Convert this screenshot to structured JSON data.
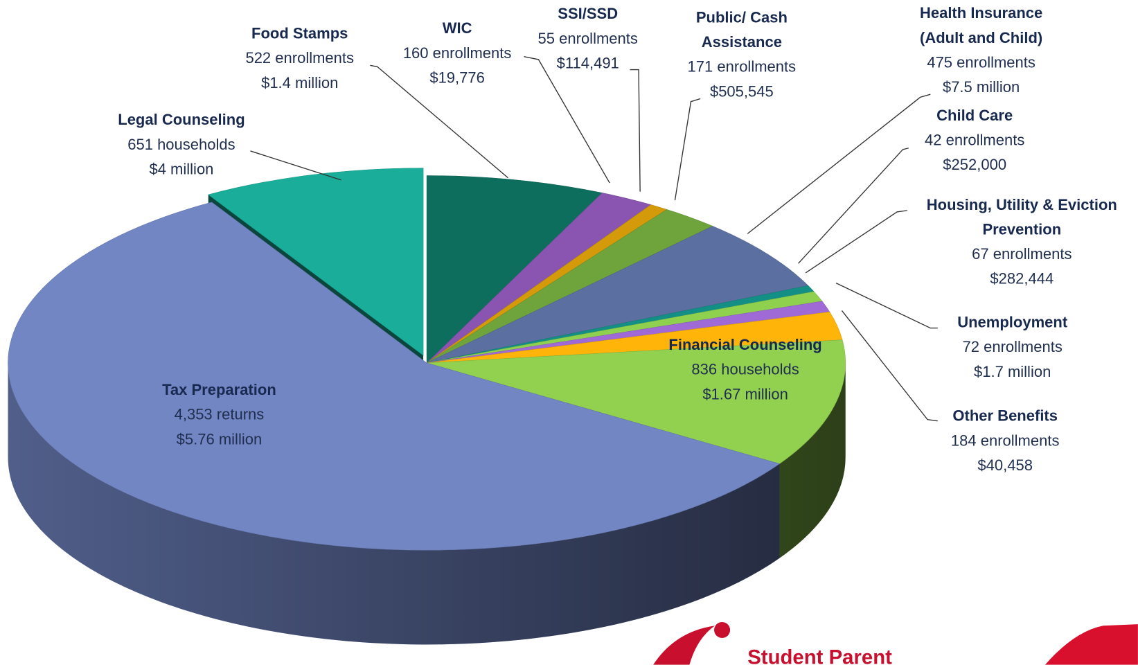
{
  "chart_data": {
    "type": "pie",
    "categories": [
      "Food Stamps",
      "WIC",
      "SSI/SSD",
      "Public/ Cash Assistance",
      "Health Insurance (Adult and Child)",
      "Child Care",
      "Housing, Utility & Eviction Prevention",
      "Unemployment",
      "Other Benefits",
      "Financial Counseling",
      "Tax Preparation",
      "Legal Counseling"
    ],
    "values": [
      522,
      160,
      55,
      171,
      475,
      42,
      67,
      72,
      184,
      836,
      4353,
      651
    ],
    "value_labels": [
      "522 enrollments",
      "160 enrollments",
      "55 enrollments",
      "171 enrollments",
      "475 enrollments",
      "42 enrollments",
      "67 enrollments",
      "72 enrollments",
      "184 enrollments",
      "836 households",
      "4,353 returns",
      "651 households"
    ],
    "amounts": [
      "$1.4 million",
      "$19,776",
      "$114,491",
      "$505,545",
      "$7.5 million",
      "$252,000",
      "$282,444",
      "$1.7 million",
      "$40,458",
      "$1.67 million",
      "$5.76 million",
      "$4 million"
    ],
    "colors": [
      "#0e6e5e",
      "#8a55b0",
      "#d49a0a",
      "#6fa33c",
      "#5b6fa0",
      "#148f86",
      "#8fd14f",
      "#a06ad6",
      "#ffb40a",
      "#92d050",
      "#7286c4",
      "#1aae9a"
    ],
    "exploded": "Legal Counseling",
    "logo_text": "Student Parent"
  }
}
